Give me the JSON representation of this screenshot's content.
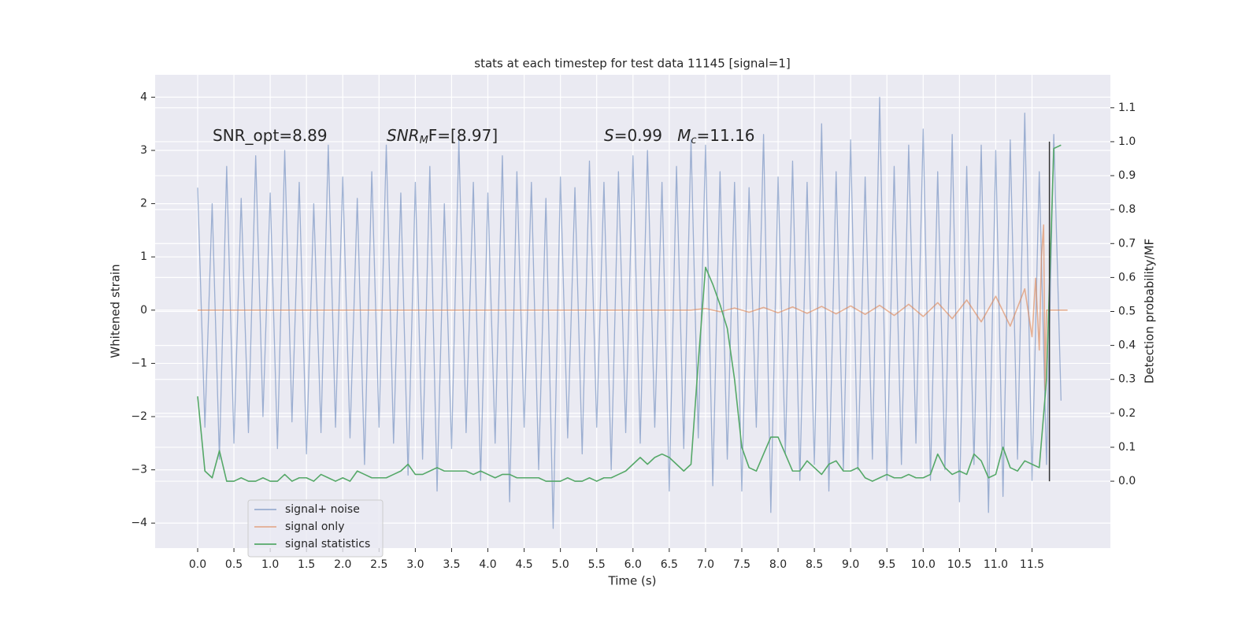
{
  "chart_data": {
    "type": "line",
    "title": "stats at each timestep for test data 11145 [signal=1]",
    "xlabel": "Time (s)",
    "ylabel": "Whitened strain",
    "y2label": "Detection probability/MF",
    "xlim": [
      -0.586,
      12.58
    ],
    "ylim": [
      -4.47,
      4.42
    ],
    "y2lim": [
      -0.197,
      1.197
    ],
    "xticks": [
      {
        "value": 0,
        "label": "0.0"
      },
      {
        "value": 0.5,
        "label": "0.5"
      },
      {
        "value": 1,
        "label": "1.0"
      },
      {
        "value": 1.5,
        "label": "1.5"
      },
      {
        "value": 2,
        "label": "2.0"
      },
      {
        "value": 2.5,
        "label": "2.5"
      },
      {
        "value": 3,
        "label": "3.0"
      },
      {
        "value": 3.5,
        "label": "3.5"
      },
      {
        "value": 4,
        "label": "4.0"
      },
      {
        "value": 4.5,
        "label": "4.5"
      },
      {
        "value": 5,
        "label": "5.0"
      },
      {
        "value": 5.5,
        "label": "5.5"
      },
      {
        "value": 6,
        "label": "6.0"
      },
      {
        "value": 6.5,
        "label": "6.5"
      },
      {
        "value": 7,
        "label": "7.0"
      },
      {
        "value": 7.5,
        "label": "7.5"
      },
      {
        "value": 8,
        "label": "8.0"
      },
      {
        "value": 8.5,
        "label": "8.5"
      },
      {
        "value": 9,
        "label": "9.0"
      },
      {
        "value": 9.5,
        "label": "9.5"
      },
      {
        "value": 10,
        "label": "10.0"
      },
      {
        "value": 10.5,
        "label": "10.5"
      },
      {
        "value": 11,
        "label": "11.0"
      },
      {
        "value": 11.5,
        "label": "11.5"
      }
    ],
    "yticks": [
      {
        "value": -4,
        "label": "−4"
      },
      {
        "value": -3,
        "label": "−3"
      },
      {
        "value": -2,
        "label": "−2"
      },
      {
        "value": -1,
        "label": "−1"
      },
      0,
      1,
      2,
      3,
      4
    ],
    "y2ticks": [
      {
        "value": 0,
        "label": "0.0"
      },
      {
        "value": 0.1,
        "label": "0.1"
      },
      {
        "value": 0.2,
        "label": "0.2"
      },
      {
        "value": 0.3,
        "label": "0.3"
      },
      {
        "value": 0.4,
        "label": "0.4"
      },
      {
        "value": 0.5,
        "label": "0.5"
      },
      {
        "value": 0.6,
        "label": "0.6"
      },
      {
        "value": 0.7,
        "label": "0.7"
      },
      {
        "value": 0.8,
        "label": "0.8"
      },
      {
        "value": 0.9,
        "label": "0.9"
      },
      {
        "value": 1,
        "label": "1.0"
      },
      {
        "value": 1.1,
        "label": "1.1"
      }
    ],
    "grid": true,
    "legend": "lower left",
    "x": [
      0,
      0.1,
      0.2,
      0.3,
      0.4,
      0.5,
      0.6,
      0.7,
      0.8,
      0.9,
      1,
      1.1,
      1.2,
      1.3,
      1.4,
      1.5,
      1.6,
      1.7,
      1.8,
      1.9,
      2,
      2.1,
      2.2,
      2.3,
      2.4,
      2.5,
      2.6,
      2.7,
      2.8,
      2.9,
      3,
      3.1,
      3.2,
      3.3,
      3.4,
      3.5,
      3.6,
      3.7,
      3.8,
      3.9,
      4,
      4.1,
      4.2,
      4.3,
      4.4,
      4.5,
      4.6,
      4.7,
      4.8,
      4.9,
      5,
      5.1,
      5.2,
      5.3,
      5.4,
      5.5,
      5.6,
      5.7,
      5.8,
      5.9,
      6,
      6.1,
      6.2,
      6.3,
      6.4,
      6.5,
      6.6,
      6.7,
      6.8,
      6.9,
      7,
      7.1,
      7.2,
      7.3,
      7.4,
      7.5,
      7.6,
      7.7,
      7.8,
      7.9,
      8,
      8.1,
      8.2,
      8.3,
      8.4,
      8.5,
      8.6,
      8.7,
      8.8,
      8.9,
      9,
      9.1,
      9.2,
      9.3,
      9.4,
      9.5,
      9.6,
      9.7,
      9.8,
      9.9,
      10,
      10.1,
      10.2,
      10.3,
      10.4,
      10.5,
      10.6,
      10.7,
      10.8,
      10.9,
      11,
      11.1,
      11.2,
      11.3,
      11.4,
      11.5,
      11.6,
      11.7,
      11.8,
      11.9
    ],
    "series": [
      {
        "name": "signal+ noise",
        "color": "#4c72b0",
        "opacity": 0.5,
        "values": [
          2.3,
          -2.2,
          2.0,
          -2.8,
          2.7,
          -2.5,
          2.1,
          -2.3,
          2.9,
          -2.0,
          2.2,
          -2.6,
          3.0,
          -2.1,
          2.4,
          -2.7,
          2.0,
          -2.3,
          3.1,
          -2.2,
          2.5,
          -2.4,
          2.1,
          -2.9,
          2.6,
          -2.2,
          3.1,
          -2.5,
          2.2,
          -3.1,
          2.4,
          -2.8,
          2.7,
          -3.4,
          2.0,
          -2.6,
          3.2,
          -2.3,
          2.4,
          -3.2,
          2.2,
          -2.5,
          2.9,
          -3.6,
          2.6,
          -2.2,
          2.4,
          -3.0,
          2.1,
          -4.1,
          2.5,
          -2.4,
          2.3,
          -2.7,
          2.8,
          -2.2,
          2.4,
          -3.0,
          2.6,
          -2.3,
          2.9,
          -2.5,
          3.0,
          -2.2,
          2.4,
          -3.4,
          2.7,
          -2.6,
          3.2,
          -2.4,
          3.1,
          -3.3,
          2.6,
          -2.8,
          2.4,
          -3.4,
          2.3,
          -2.2,
          3.3,
          -3.8,
          2.5,
          -2.7,
          2.8,
          -3.2,
          2.4,
          -2.9,
          3.5,
          -3.4,
          2.6,
          -3.0,
          3.2,
          -3.0,
          2.5,
          -2.8,
          4.0,
          -3.2,
          2.7,
          -2.9,
          3.1,
          -2.5,
          3.4,
          -3.2,
          2.6,
          -3.0,
          3.3,
          -3.6,
          2.7,
          -2.9,
          3.1,
          -3.8,
          3.0,
          -3.5,
          3.2,
          -2.8,
          3.7,
          -3.2,
          2.6,
          -2.9,
          3.3,
          -1.7
        ]
      },
      {
        "name": "signal only",
        "color": "#dd8452",
        "opacity": 0.6,
        "x": [
          0,
          6.8,
          7.0,
          7.2,
          7.4,
          7.6,
          7.8,
          8.0,
          8.2,
          8.4,
          8.6,
          8.8,
          9.0,
          9.2,
          9.4,
          9.6,
          9.8,
          10.0,
          10.2,
          10.4,
          10.6,
          10.8,
          11.0,
          11.2,
          11.4,
          11.5,
          11.55,
          11.6,
          11.63,
          11.66,
          11.68,
          11.7,
          11.75,
          11.99
        ],
        "values": [
          0,
          0,
          0.03,
          -0.03,
          0.04,
          -0.04,
          0.05,
          -0.05,
          0.06,
          -0.06,
          0.07,
          -0.07,
          0.08,
          -0.08,
          0.09,
          -0.1,
          0.11,
          -0.12,
          0.14,
          -0.16,
          0.19,
          -0.22,
          0.26,
          -0.3,
          0.4,
          -0.5,
          0.6,
          -0.75,
          1.0,
          1.6,
          -1.5,
          0,
          0,
          0
        ]
      },
      {
        "name": "signal statistics",
        "color": "#55a868",
        "opacity": 1,
        "axis": "y2",
        "values": [
          0.25,
          0.03,
          0.01,
          0.09,
          0.0,
          0.0,
          0.01,
          0.0,
          0.0,
          0.01,
          0.0,
          0.0,
          0.02,
          0.0,
          0.01,
          0.01,
          0.0,
          0.02,
          0.01,
          0.0,
          0.01,
          0.0,
          0.03,
          0.02,
          0.01,
          0.01,
          0.01,
          0.02,
          0.03,
          0.05,
          0.02,
          0.02,
          0.03,
          0.04,
          0.03,
          0.03,
          0.03,
          0.03,
          0.02,
          0.03,
          0.02,
          0.01,
          0.02,
          0.02,
          0.01,
          0.01,
          0.01,
          0.01,
          0.0,
          0.0,
          0.0,
          0.01,
          0.0,
          0.0,
          0.01,
          0.0,
          0.01,
          0.01,
          0.02,
          0.03,
          0.05,
          0.07,
          0.05,
          0.07,
          0.08,
          0.07,
          0.05,
          0.03,
          0.05,
          0.35,
          0.63,
          0.58,
          0.52,
          0.45,
          0.3,
          0.1,
          0.04,
          0.03,
          0.08,
          0.13,
          0.13,
          0.08,
          0.03,
          0.03,
          0.06,
          0.04,
          0.02,
          0.05,
          0.06,
          0.03,
          0.03,
          0.04,
          0.01,
          0.0,
          0.01,
          0.02,
          0.01,
          0.01,
          0.02,
          0.01,
          0.01,
          0.02,
          0.08,
          0.04,
          0.02,
          0.03,
          0.02,
          0.08,
          0.06,
          0.01,
          0.02,
          0.1,
          0.04,
          0.03,
          0.06,
          0.05,
          0.04,
          0.3,
          0.98,
          0.99
        ]
      }
    ],
    "vlines": [
      {
        "x": 11.74,
        "ymin": 0,
        "ymax": 1,
        "axis": "y2",
        "color": "#333333"
      }
    ],
    "annotations": [
      [
        {
          "text": "SNR_opt=8.89",
          "style": "normal"
        }
      ],
      [
        {
          "text": "SNR",
          "style": "italic"
        },
        {
          "text": "M",
          "style": "sub"
        },
        {
          "text": "F=[8.97]",
          "style": "normal"
        }
      ],
      [
        {
          "text": "S",
          "style": "italic"
        },
        {
          "text": "=0.99   ",
          "style": "normal"
        },
        {
          "text": "M",
          "style": "italic"
        },
        {
          "text": "c",
          "style": "sub"
        },
        {
          "text": "=11.16",
          "style": "normal"
        }
      ]
    ]
  }
}
